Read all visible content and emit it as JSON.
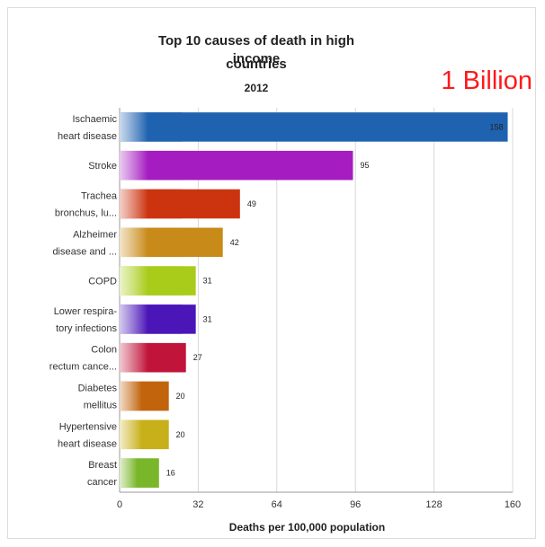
{
  "overlay_text": "1 Billion",
  "chart_data": {
    "type": "bar",
    "orientation": "horizontal",
    "title": "Top 10 causes of death in high income countries",
    "title_line1": "Top 10 causes of death in high income",
    "title_line2": "countries",
    "subtitle": "2012",
    "xlabel": "Deaths per 100,000 population",
    "ylabel": "",
    "xlim": [
      0,
      160
    ],
    "xticks": [
      0,
      32,
      64,
      96,
      128,
      160
    ],
    "grid": true,
    "categories": [
      [
        "Ischaemic",
        "heart disease"
      ],
      [
        "Stroke"
      ],
      [
        "Trachea",
        "bronchus, lu..."
      ],
      [
        "Alzheimer",
        "disease and ..."
      ],
      [
        "COPD"
      ],
      [
        "Lower respira-",
        "tory infections"
      ],
      [
        "Colon",
        "rectum cance..."
      ],
      [
        "Diabetes",
        "mellitus"
      ],
      [
        "Hypertensive",
        "heart disease"
      ],
      [
        "Breast",
        "cancer"
      ]
    ],
    "values": [
      158,
      95,
      49,
      42,
      31,
      31,
      27,
      20,
      20,
      16
    ],
    "colors": [
      "#1f62b0",
      "#a51dc0",
      "#cc3410",
      "#c88a18",
      "#a9cc1a",
      "#4a16b8",
      "#c0143a",
      "#c2640c",
      "#c8b01a",
      "#7ab62a"
    ]
  }
}
